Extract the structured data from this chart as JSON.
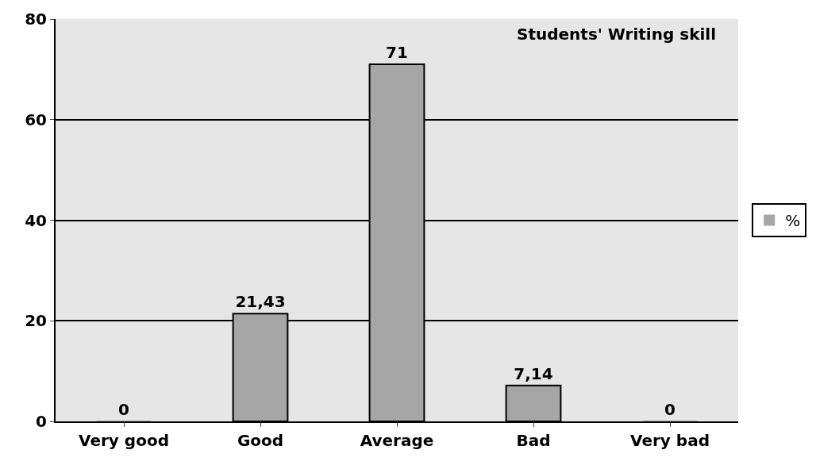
{
  "chart_data": {
    "type": "bar",
    "title": "Students' Writing skill",
    "categories": [
      "Very good",
      "Good",
      "Average",
      "Bad",
      "Very bad"
    ],
    "series": [
      {
        "name": "%",
        "color": "#a6a6a6",
        "values": [
          0,
          21.43,
          71,
          7.14,
          0
        ],
        "value_labels": [
          "0",
          "21,43",
          "71",
          "7,14",
          "0"
        ]
      }
    ],
    "ylim": [
      0,
      80
    ],
    "yticks": [
      0,
      20,
      40,
      60,
      80
    ],
    "grid": "y",
    "legend": "right"
  }
}
